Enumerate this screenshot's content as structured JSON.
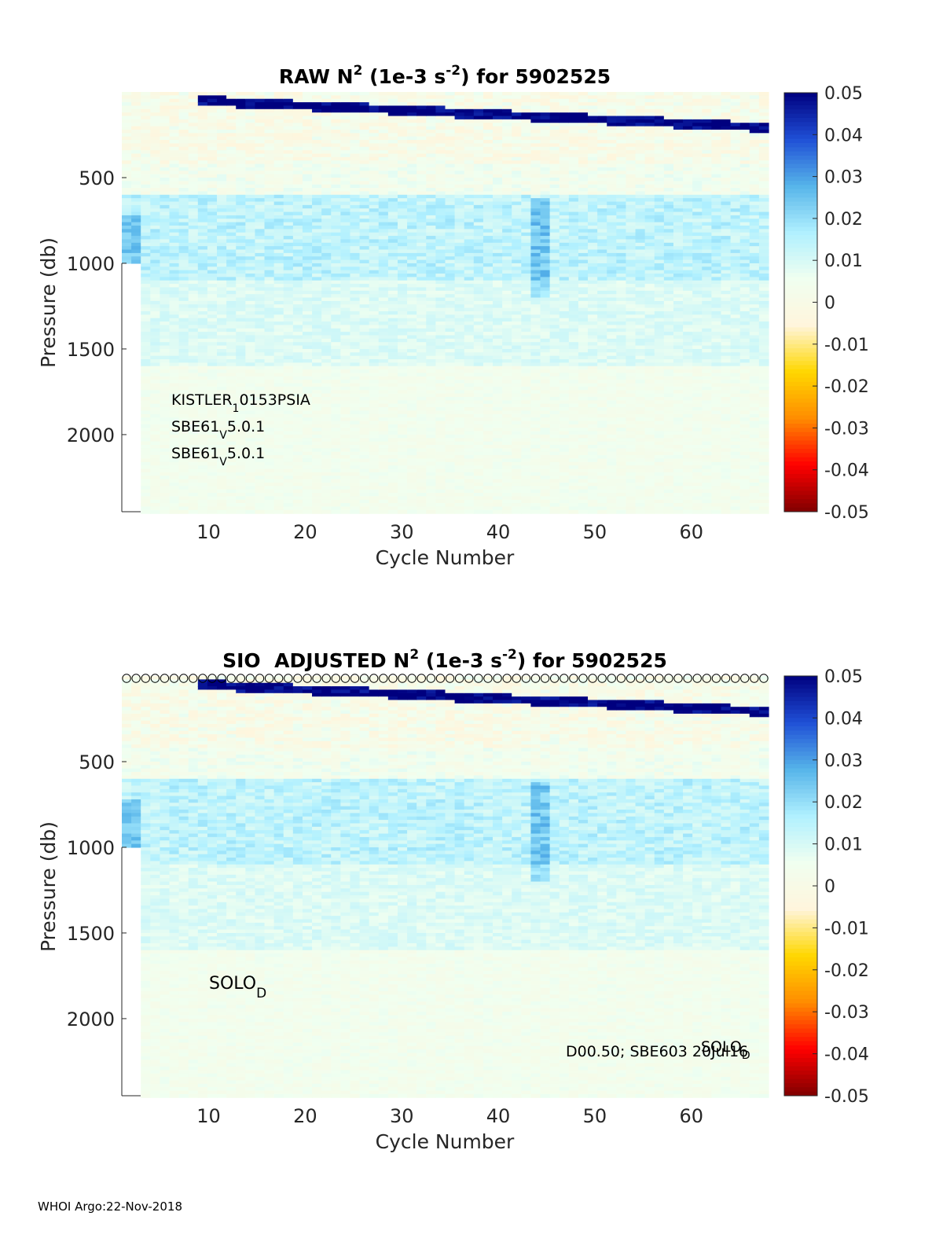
{
  "footer": "WHOI Argo:22-Nov-2018",
  "colormap": [
    "#800000",
    "#ff0000",
    "#ff8c00",
    "#ffd700",
    "#fff5dc",
    "#f0fff0",
    "#b0f0ff",
    "#56b4e9",
    "#1f4fd6",
    "#00007f"
  ],
  "chart_data": [
    {
      "type": "heatmap",
      "title": "RAW N2 (1e-3 s-2) for 5902525",
      "title_parts": {
        "pre": "RAW N",
        "sup1": "2",
        "mid": " (1e-3 s",
        "sup2": "-2",
        "post": ") for 5902525"
      },
      "xlabel": "Cycle Number",
      "ylabel": "Pressure (db)",
      "xlim": [
        1,
        68
      ],
      "ylim": [
        0,
        2450
      ],
      "y_reversed": true,
      "x_ticks": [
        10,
        20,
        30,
        40,
        50,
        60
      ],
      "y_ticks": [
        500,
        1000,
        1500,
        2000
      ],
      "colorbar": {
        "range": [
          -0.05,
          0.05
        ],
        "ticks": [
          "0.05",
          "0.04",
          "0.03",
          "0.02",
          "0.01",
          "0",
          "-0.01",
          "-0.02",
          "-0.03",
          "-0.04",
          "-0.05"
        ]
      },
      "annotations": [
        {
          "id": "sensor1",
          "base": "KISTLER",
          "sub": "1",
          "rest": "0153PSIA"
        },
        {
          "id": "sensor2",
          "base": "SBE61",
          "sub": "V",
          "rest": "5.0.1"
        },
        {
          "id": "sensor3",
          "base": "SBE61",
          "sub": "V",
          "rest": "5.0.1"
        }
      ],
      "value_pattern": {
        "near_surface_by_depth": "strong positive (~0.05) thermocline band, deepening from ~50 db at cycle 10 to ~200 db at cycle 65",
        "depth_0_400": "near zero, mixed small positive and negative",
        "depth_600_1100": "~0.015",
        "depth_1100_1600": "~0.008",
        "depth_1600_2450": "~0.003"
      }
    },
    {
      "type": "heatmap",
      "title": "SIO  ADJUSTED N2 (1e-3 s-2) for 5902525",
      "title_parts": {
        "pre": "SIO  ADJUSTED N",
        "sup1": "2",
        "mid": " (1e-3 s",
        "sup2": "-2",
        "post": ") for 5902525"
      },
      "xlabel": "Cycle Number",
      "ylabel": "Pressure (db)",
      "xlim": [
        1,
        68
      ],
      "ylim": [
        0,
        2450
      ],
      "y_reversed": true,
      "x_ticks": [
        10,
        20,
        30,
        40,
        50,
        60
      ],
      "y_ticks": [
        500,
        1000,
        1500,
        2000
      ],
      "colorbar": {
        "range": [
          -0.05,
          0.05
        ],
        "ticks": [
          "0.05",
          "0.04",
          "0.03",
          "0.02",
          "0.01",
          "0",
          "-0.01",
          "-0.02",
          "-0.03",
          "-0.04",
          "-0.05"
        ]
      },
      "marker_row": {
        "symbol": "o",
        "cycles_from": 1,
        "cycles_to": 68
      },
      "annotations": [
        {
          "id": "solo_left",
          "base": "SOLO",
          "sub": "D",
          "rest": ""
        },
        {
          "id": "solo_right",
          "base": "SOLO",
          "sub": "D",
          "rest": ""
        },
        {
          "id": "dtext",
          "base": "D00.50; SBE603 20Jul16",
          "sub": "",
          "rest": ""
        }
      ]
    }
  ]
}
